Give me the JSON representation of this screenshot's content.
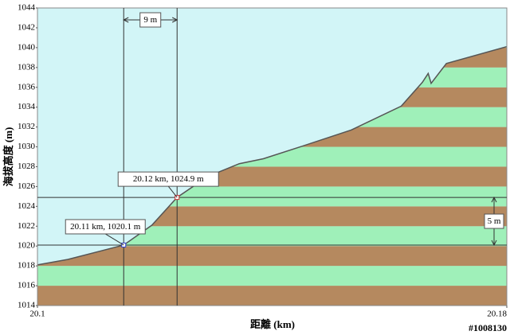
{
  "chart_data": {
    "type": "area-profile",
    "ylabel": "海拔高度 (m)",
    "xlabel": "距離 (km)",
    "watermark": "#1008130",
    "x": [
      20.1,
      20.1052,
      20.1147,
      20.1195,
      20.1238,
      20.129,
      20.1344,
      20.1385,
      20.1453,
      20.1535,
      20.162,
      20.1656,
      20.1666,
      20.1671,
      20.1697,
      20.18
    ],
    "values": [
      1018.1,
      1018.65,
      1020.1,
      1022.1,
      1024.9,
      1027.0,
      1028.3,
      1028.8,
      1030.1,
      1031.7,
      1034.1,
      1036.5,
      1037.4,
      1036.4,
      1038.4,
      1040.1
    ],
    "line_color": "#555555",
    "sky_color": "#d2f5f7",
    "band_colors": [
      "#b5895f",
      "#9ff0b9"
    ],
    "xlim": [
      20.1,
      20.18
    ],
    "xticks": [
      20.1,
      20.18
    ],
    "ylim": [
      1014,
      1044
    ],
    "yticks": [
      1014,
      1016,
      1018,
      1020,
      1022,
      1024,
      1026,
      1028,
      1030,
      1032,
      1034,
      1036,
      1038,
      1040,
      1042,
      1044
    ],
    "markers": [
      {
        "label": "20.11 km, 1020.1 m",
        "x": 20.1147,
        "y": 1020.1,
        "color": "#3344cc"
      },
      {
        "label": "20.12 km, 1024.9 m",
        "x": 20.1238,
        "y": 1024.9,
        "color": "#cc3333"
      }
    ],
    "distance_label": "9 m",
    "height_label": "5 m"
  }
}
